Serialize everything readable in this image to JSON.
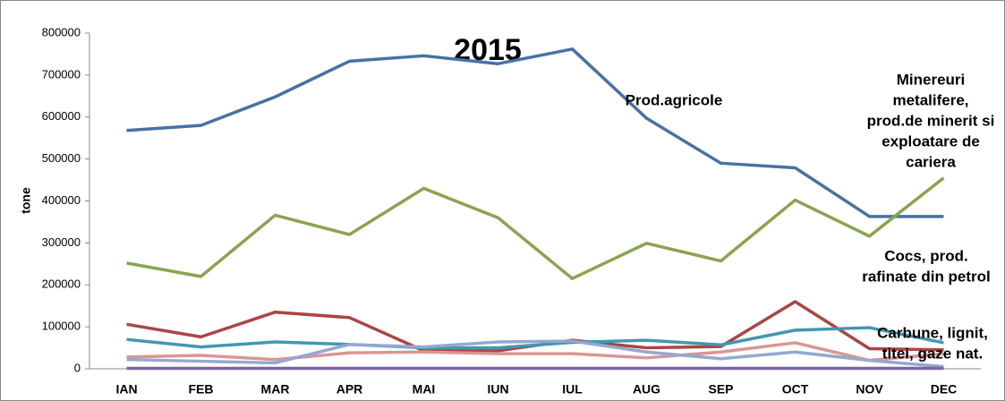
{
  "chart_data": {
    "type": "line",
    "title": "2015",
    "y_label": "tone",
    "categories": [
      "IAN",
      "FEB",
      "MAR",
      "APR",
      "MAI",
      "IUN",
      "IUL",
      "AUG",
      "SEP",
      "OCT",
      "NOV",
      "DEC"
    ],
    "ylim": [
      0,
      800000
    ],
    "yticks": [
      0,
      100000,
      200000,
      300000,
      400000,
      500000,
      600000,
      700000,
      800000
    ],
    "grid": false,
    "series": [
      {
        "color": "#4572a7",
        "values": [
          568000,
          580000,
          648000,
          733000,
          746000,
          727000,
          762000,
          597000,
          490000,
          479000,
          363000,
          363000
        ]
      },
      {
        "color": "#89a54e",
        "values": [
          252000,
          220000,
          366000,
          320000,
          430000,
          360000,
          215000,
          299000,
          257000,
          402000,
          316000,
          455000
        ]
      },
      {
        "color": "#aa4643",
        "values": [
          106000,
          76000,
          135000,
          122000,
          43000,
          43000,
          68000,
          50000,
          53000,
          160000,
          48000,
          45000
        ]
      },
      {
        "color": "#4198af",
        "values": [
          70000,
          52000,
          64000,
          58000,
          50000,
          50000,
          63000,
          68000,
          57000,
          92000,
          98000,
          62000
        ]
      },
      {
        "color": "#d99694",
        "values": [
          28000,
          32000,
          22000,
          38000,
          40000,
          36000,
          36000,
          26000,
          40000,
          62000,
          20000,
          36000
        ]
      },
      {
        "color": "#93a9cf",
        "values": [
          22000,
          18000,
          14000,
          58000,
          52000,
          64000,
          66000,
          40000,
          24000,
          40000,
          20000,
          5000
        ]
      },
      {
        "color": "#8064a2",
        "values": [
          1000,
          1000,
          1000,
          1000,
          1000,
          1000,
          1000,
          1000,
          1000,
          1000,
          1000,
          1000
        ]
      }
    ],
    "annotations": [
      [
        "Prod.agricole"
      ],
      [
        "Minereuri",
        "metalifere,",
        "prod.de minerit si",
        "exploatare de",
        "cariera"
      ],
      [
        "Cocs, prod.",
        "rafinate din petrol"
      ],
      [
        "Carbune, lignit,",
        "titei, gaze nat."
      ]
    ]
  }
}
